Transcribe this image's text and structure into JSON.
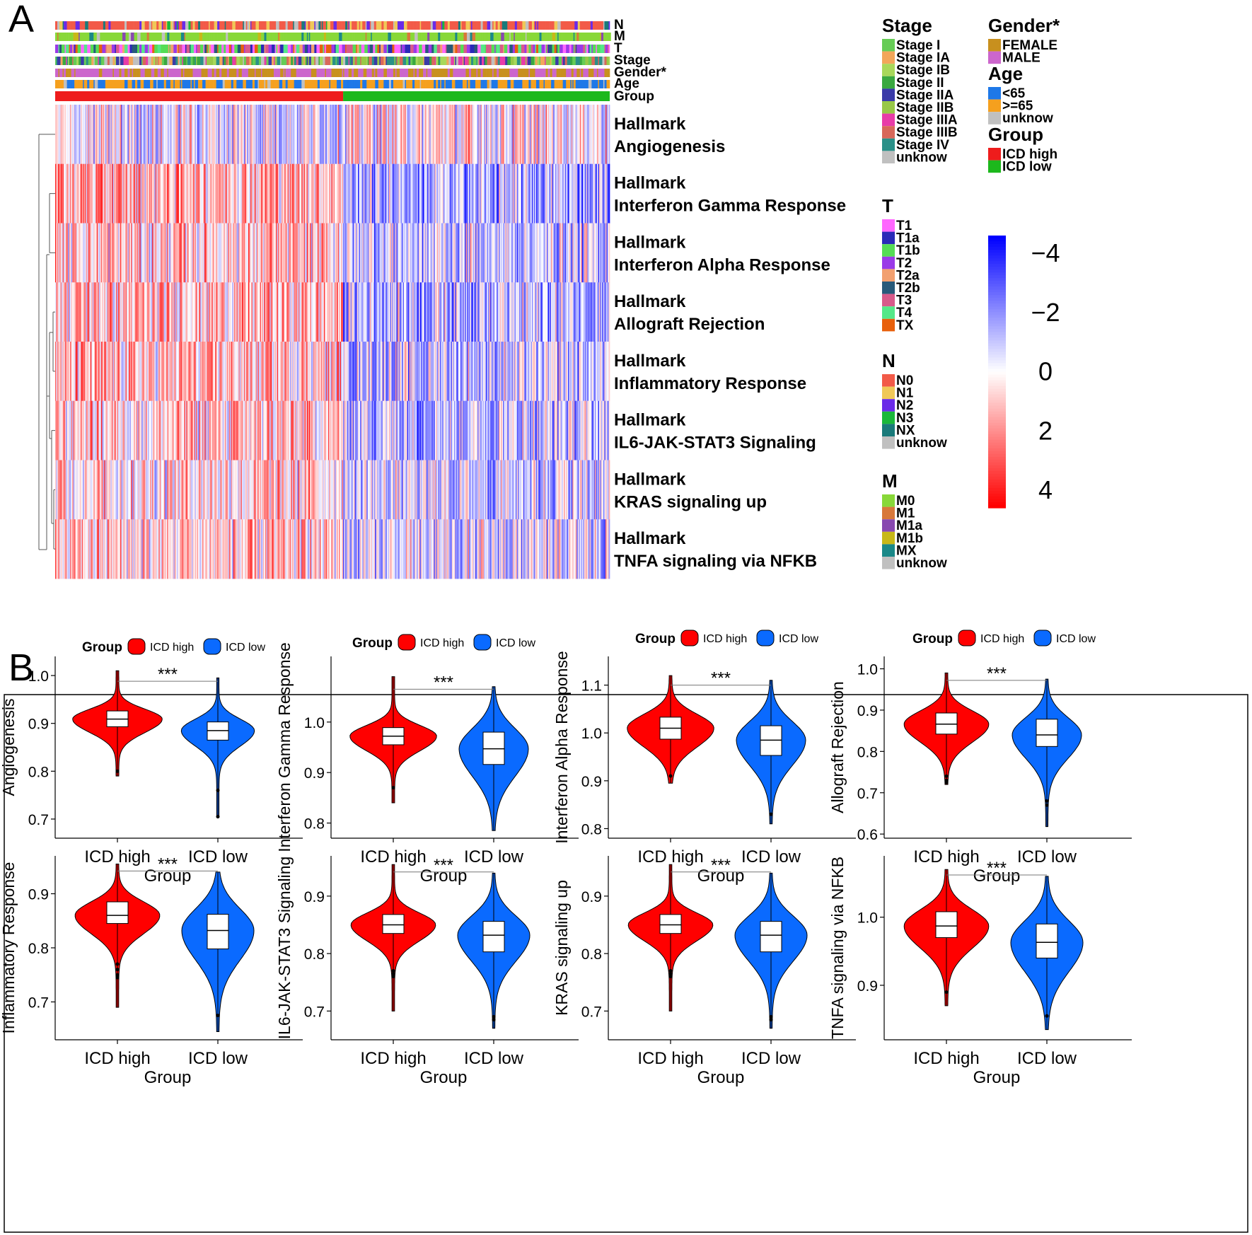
{
  "figure": {
    "panel_a_label": "A",
    "panel_b_label": "B"
  },
  "colors": {
    "high": "#ff0000",
    "low": "#0a6aff",
    "heat_high": "#ff0000",
    "heat_low": "#0000ff",
    "heat_mid": "#ffffff"
  },
  "chart_data": [
    {
      "id": "heatmap",
      "type": "heatmap",
      "samples": 520,
      "annotation_tracks": [
        "N",
        "M",
        "T",
        "Stage",
        "Gender*",
        "Age",
        "Group"
      ],
      "group_split_fraction": 0.52,
      "rows": [
        {
          "line1": "Hallmark",
          "line2": "Angiogenesis",
          "bias": -0.1
        },
        {
          "line1": "Hallmark",
          "line2": "Interferon Gamma Response",
          "bias": 0.6
        },
        {
          "line1": "Hallmark",
          "line2": "Interferon Alpha Response",
          "bias": 0.35
        },
        {
          "line1": "Hallmark",
          "line2": "Allograft Rejection",
          "bias": 0.45
        },
        {
          "line1": "Hallmark",
          "line2": "Inflammatory Response",
          "bias": 0.4
        },
        {
          "line1": "Hallmark",
          "line2": "IL6-JAK-STAT3 Signaling",
          "bias": 0.35
        },
        {
          "line1": "Hallmark",
          "line2": "KRAS signaling up",
          "bias": 0.3
        },
        {
          "line1": "Hallmark",
          "line2": "TNFA signaling via NFKB",
          "bias": 0.3
        }
      ],
      "color_scale": {
        "ticks": [
          "−4",
          "−2",
          "0",
          "2",
          "4"
        ],
        "min": -4,
        "max": 4
      },
      "legends": [
        {
          "title": "Stage",
          "items": [
            {
              "label": "Stage I",
              "color": "#66cc55"
            },
            {
              "label": "Stage IA",
              "color": "#f2a65a"
            },
            {
              "label": "Stage IB",
              "color": "#a8d85a"
            },
            {
              "label": "Stage II",
              "color": "#3aa840"
            },
            {
              "label": "Stage IIA",
              "color": "#3a3aa8"
            },
            {
              "label": "Stage IIB",
              "color": "#98c848"
            },
            {
              "label": "Stage IIIA",
              "color": "#e83ca8"
            },
            {
              "label": "Stage IIIB",
              "color": "#d8685a"
            },
            {
              "label": "Stage IV",
              "color": "#2a9088"
            },
            {
              "label": "unknow",
              "color": "#c0c0c0"
            }
          ]
        },
        {
          "title": "Gender*",
          "items": [
            {
              "label": "FEMALE",
              "color": "#c8901e"
            },
            {
              "label": "MALE",
              "color": "#cc66cc"
            }
          ]
        },
        {
          "title": "Age",
          "items": [
            {
              "label": "<65",
              "color": "#1e78e8"
            },
            {
              "label": ">=65",
              "color": "#f5a01e"
            },
            {
              "label": "unknow",
              "color": "#c0c0c0"
            }
          ]
        },
        {
          "title": "Group",
          "items": [
            {
              "label": "ICD high",
              "color": "#ee1c1c"
            },
            {
              "label": "ICD low",
              "color": "#1cb81c"
            }
          ]
        },
        {
          "title": "T",
          "items": [
            {
              "label": "T1",
              "color": "#ff66ff"
            },
            {
              "label": "T1a",
              "color": "#2a2ab8"
            },
            {
              "label": "T1b",
              "color": "#55dd55"
            },
            {
              "label": "T2",
              "color": "#9a3ae8"
            },
            {
              "label": "T2a",
              "color": "#f2a070"
            },
            {
              "label": "T2b",
              "color": "#285a7a"
            },
            {
              "label": "T3",
              "color": "#d85a8a"
            },
            {
              "label": "T4",
              "color": "#55e888"
            },
            {
              "label": "TX",
              "color": "#e8600c"
            }
          ]
        },
        {
          "title": "N",
          "items": [
            {
              "label": "N0",
              "color": "#f25a48"
            },
            {
              "label": "N1",
              "color": "#f0c858"
            },
            {
              "label": "N2",
              "color": "#6a2ae8"
            },
            {
              "label": "N3",
              "color": "#1ab83a"
            },
            {
              "label": "NX",
              "color": "#1a7a7a"
            },
            {
              "label": "unknow",
              "color": "#c0c0c0"
            }
          ]
        },
        {
          "title": "M",
          "items": [
            {
              "label": "M0",
              "color": "#88d838"
            },
            {
              "label": "M1",
              "color": "#d8783a"
            },
            {
              "label": "M1a",
              "color": "#8848b0"
            },
            {
              "label": "M1b",
              "color": "#c8b818"
            },
            {
              "label": "MX",
              "color": "#1a8888"
            },
            {
              "label": "unknow",
              "color": "#c0c0c0"
            }
          ]
        }
      ]
    },
    {
      "id": "v1",
      "type": "violin",
      "ylabel": "Angiogenesis",
      "ylim": [
        0.66,
        1.04
      ],
      "yticks": [
        0.7,
        0.8,
        0.9,
        1.0
      ],
      "ytick_labels": [
        "0.7",
        "0.8",
        "0.9",
        "1.0"
      ],
      "high": {
        "q1": 0.893,
        "median": 0.909,
        "q3": 0.926,
        "min": 0.79,
        "max": 1.01,
        "width": 0.93,
        "outliers": [
          0.8
        ]
      },
      "low": {
        "q1": 0.865,
        "median": 0.885,
        "q3": 0.903,
        "min": 0.705,
        "max": 0.995,
        "width": 0.76,
        "outliers": [
          0.76,
          0.705
        ]
      },
      "sig_y": 0.988,
      "sig": "***",
      "xlabel": "Group",
      "categories": [
        "ICD high",
        "ICD low"
      ],
      "legend_title": "Group"
    },
    {
      "id": "v2",
      "type": "violin",
      "ylabel": "Interferon Gamma Response",
      "ylim": [
        0.77,
        1.13
      ],
      "yticks": [
        0.8,
        0.9,
        1.0
      ],
      "ytick_labels": [
        "0.8",
        "0.9",
        "1.0"
      ],
      "high": {
        "q1": 0.955,
        "median": 0.972,
        "q3": 0.989,
        "min": 0.84,
        "max": 1.09,
        "width": 0.9,
        "outliers": [
          0.87
        ]
      },
      "low": {
        "q1": 0.916,
        "median": 0.947,
        "q3": 0.98,
        "min": 0.785,
        "max": 1.07,
        "width": 0.72,
        "outliers": []
      },
      "sig_y": 1.065,
      "sig": "***",
      "xlabel": "Group",
      "categories": [
        "ICD high",
        "ICD low"
      ],
      "legend_title": "Group"
    },
    {
      "id": "v3",
      "type": "violin",
      "ylabel": "Interferon Alpha Response",
      "ylim": [
        0.78,
        1.16
      ],
      "yticks": [
        0.8,
        0.9,
        1.0,
        1.1
      ],
      "ytick_labels": [
        "0.8",
        "0.9",
        "1.0",
        "1.1"
      ],
      "high": {
        "q1": 0.987,
        "median": 1.01,
        "q3": 1.033,
        "min": 0.895,
        "max": 1.12,
        "width": 0.9,
        "outliers": [
          0.91
        ]
      },
      "low": {
        "q1": 0.953,
        "median": 0.985,
        "q3": 1.015,
        "min": 0.81,
        "max": 1.11,
        "width": 0.72,
        "outliers": [
          0.83
        ]
      },
      "sig_y": 1.1,
      "sig": "***",
      "xlabel": "Group",
      "categories": [
        "ICD high",
        "ICD low"
      ],
      "legend_title": "Group"
    },
    {
      "id": "v4",
      "type": "violin",
      "ylabel": "Allograft Rejection",
      "ylim": [
        0.59,
        1.03
      ],
      "yticks": [
        0.6,
        0.7,
        0.8,
        0.9,
        1.0
      ],
      "ytick_labels": [
        "0.6",
        "0.7",
        "0.8",
        "0.9",
        "1.0"
      ],
      "high": {
        "q1": 0.842,
        "median": 0.866,
        "q3": 0.893,
        "min": 0.72,
        "max": 0.99,
        "width": 0.88,
        "outliers": [
          0.74,
          0.73,
          0.725
        ]
      },
      "low": {
        "q1": 0.812,
        "median": 0.84,
        "q3": 0.878,
        "min": 0.618,
        "max": 0.975,
        "width": 0.72,
        "outliers": [
          0.67,
          0.68
        ]
      },
      "sig_y": 0.972,
      "sig": "***",
      "xlabel": "Group",
      "categories": [
        "ICD high",
        "ICD low"
      ],
      "legend_title": "Group"
    },
    {
      "id": "v5",
      "type": "violin",
      "ylabel": "Inflammatory Response",
      "ylim": [
        0.63,
        0.97
      ],
      "yticks": [
        0.7,
        0.8,
        0.9
      ],
      "ytick_labels": [
        "0.7",
        "0.8",
        "0.9"
      ],
      "high": {
        "q1": 0.845,
        "median": 0.86,
        "q3": 0.885,
        "min": 0.69,
        "max": 0.955,
        "width": 0.88,
        "outliers": [
          0.77,
          0.76,
          0.75,
          0.745
        ]
      },
      "low": {
        "q1": 0.798,
        "median": 0.832,
        "q3": 0.862,
        "min": 0.645,
        "max": 0.94,
        "width": 0.75,
        "outliers": [
          0.675
        ]
      },
      "sig_y": 0.942,
      "sig": "***",
      "xlabel": "Group",
      "categories": [
        "ICD high",
        "ICD low"
      ],
      "legend_title": "Group"
    },
    {
      "id": "v6",
      "type": "violin",
      "ylabel": "IL6-JAK-STAT3 Signaling",
      "ylim": [
        0.65,
        0.97
      ],
      "yticks": [
        0.7,
        0.8,
        0.9
      ],
      "ytick_labels": [
        "0.7",
        "0.8",
        "0.9"
      ],
      "high": {
        "q1": 0.835,
        "median": 0.85,
        "q3": 0.868,
        "min": 0.7,
        "max": 0.955,
        "width": 0.88,
        "outliers": [
          0.77,
          0.765,
          0.76
        ]
      },
      "low": {
        "q1": 0.803,
        "median": 0.832,
        "q3": 0.856,
        "min": 0.67,
        "max": 0.94,
        "width": 0.75,
        "outliers": [
          0.69,
          0.685
        ]
      },
      "sig_y": 0.942,
      "sig": "***",
      "xlabel": "Group",
      "categories": [
        "ICD high",
        "ICD low"
      ],
      "legend_title": "Group"
    },
    {
      "id": "v7",
      "type": "violin",
      "ylabel": "KRAS signaling up",
      "ylim": [
        0.65,
        0.97
      ],
      "yticks": [
        0.7,
        0.8,
        0.9
      ],
      "ytick_labels": [
        "0.7",
        "0.8",
        "0.9"
      ],
      "high": {
        "q1": 0.835,
        "median": 0.85,
        "q3": 0.868,
        "min": 0.7,
        "max": 0.955,
        "width": 0.88,
        "outliers": [
          0.77,
          0.765,
          0.76
        ]
      },
      "low": {
        "q1": 0.803,
        "median": 0.832,
        "q3": 0.856,
        "min": 0.67,
        "max": 0.94,
        "width": 0.75,
        "outliers": [
          0.69,
          0.685
        ]
      },
      "sig_y": 0.942,
      "sig": "***",
      "xlabel": "Group",
      "categories": [
        "ICD high",
        "ICD low"
      ],
      "legend_title": "Group"
    },
    {
      "id": "v8",
      "type": "violin",
      "ylabel": "TNFA signaling via NFKB",
      "ylim": [
        0.82,
        1.09
      ],
      "yticks": [
        0.9,
        1.0
      ],
      "ytick_labels": [
        "0.9",
        "1.0"
      ],
      "high": {
        "q1": 0.97,
        "median": 0.987,
        "q3": 1.008,
        "min": 0.87,
        "max": 1.07,
        "width": 0.88,
        "outliers": [
          0.89
        ]
      },
      "low": {
        "q1": 0.94,
        "median": 0.963,
        "q3": 0.99,
        "min": 0.835,
        "max": 1.06,
        "width": 0.75,
        "outliers": [
          0.855
        ]
      },
      "sig_y": 1.062,
      "sig": "***",
      "xlabel": "Group",
      "categories": [
        "ICD high",
        "ICD low"
      ],
      "legend_title": "Group"
    }
  ]
}
